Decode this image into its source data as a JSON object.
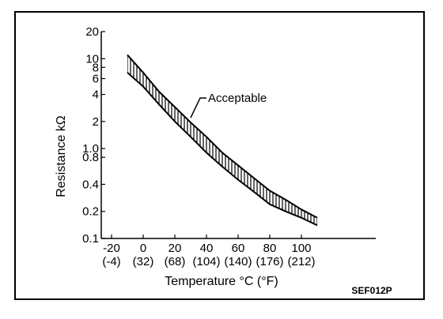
{
  "chart_data": {
    "type": "area",
    "xlabel": "Temperature °C (°F)",
    "ylabel": "Resistance kΩ",
    "yscale": "log",
    "xlim": [
      -20,
      120
    ],
    "ylim": [
      0.1,
      20
    ],
    "x_ticks": [
      {
        "value": -20,
        "label": "-20",
        "sub": "(-4)"
      },
      {
        "value": 0,
        "label": "0",
        "sub": "(32)"
      },
      {
        "value": 20,
        "label": "20",
        "sub": "(68)"
      },
      {
        "value": 40,
        "label": "40",
        "sub": "(104)"
      },
      {
        "value": 60,
        "label": "60",
        "sub": "(140)"
      },
      {
        "value": 80,
        "label": "80",
        "sub": "(176)"
      },
      {
        "value": 100,
        "label": "100",
        "sub": "(212)"
      }
    ],
    "y_ticks": [
      {
        "value": 20,
        "label": "20"
      },
      {
        "value": 10,
        "label": "10"
      },
      {
        "value": 8,
        "label": "8"
      },
      {
        "value": 6,
        "label": "6"
      },
      {
        "value": 4,
        "label": "4"
      },
      {
        "value": 2,
        "label": "2"
      },
      {
        "value": 1.0,
        "label": "1.0"
      },
      {
        "value": 0.8,
        "label": "0.8"
      },
      {
        "value": 0.4,
        "label": "0.4"
      },
      {
        "value": 0.2,
        "label": "0.2"
      },
      {
        "value": 0.1,
        "label": "0.1"
      }
    ],
    "series": [
      {
        "name": "Acceptable",
        "x": [
          -10,
          0,
          10,
          20,
          30,
          40,
          50,
          60,
          70,
          80,
          90,
          100,
          110
        ],
        "upper": [
          11,
          7.0,
          4.3,
          2.9,
          1.95,
          1.35,
          0.9,
          0.65,
          0.47,
          0.34,
          0.27,
          0.21,
          0.17
        ],
        "lower": [
          7.0,
          4.9,
          3.1,
          2.0,
          1.35,
          0.9,
          0.63,
          0.45,
          0.33,
          0.24,
          0.2,
          0.17,
          0.14
        ]
      }
    ],
    "annotations": [
      {
        "text": "Acceptable",
        "x": 30,
        "y": 2.2
      }
    ],
    "grid": false,
    "hatch": "vertical"
  },
  "figure_code": "SEF012P",
  "colors": {
    "ink": "#000000",
    "background": "#ffffff"
  }
}
